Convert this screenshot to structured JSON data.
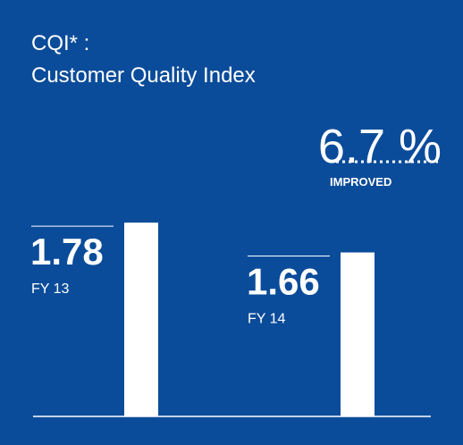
{
  "chart_data": {
    "type": "bar",
    "title": [
      "CQI* :",
      "Customer Quality Index"
    ],
    "annotation": "6.7 %",
    "annotation_label": "IMPROVED",
    "categories": [
      "FY 13",
      "FY 14"
    ],
    "values": [
      1.78,
      1.66
    ],
    "color": "#ffffff",
    "background": "#0b4c9a",
    "ylim": [
      1,
      2
    ]
  }
}
